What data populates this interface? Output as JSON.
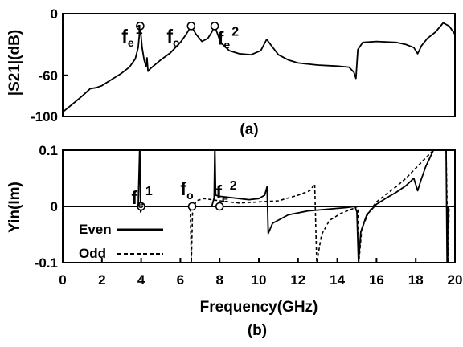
{
  "chart_data": [
    {
      "type": "line",
      "caption": "(a)",
      "ylabel": "|S21|(dB)",
      "xlabel": "",
      "xlim": [
        0,
        20
      ],
      "ylim": [
        -100,
        0
      ],
      "yticks": [
        "0",
        "-60",
        "-100"
      ],
      "ytick_values": [
        0,
        -60,
        -100
      ],
      "grid": false,
      "series": [
        {
          "values": [
            {
              "x": 0.05,
              "y": -95
            },
            {
              "x": 0.5,
              "y": -88
            },
            {
              "x": 1.0,
              "y": -80
            },
            {
              "x": 1.4,
              "y": -73
            },
            {
              "x": 1.7,
              "y": -72
            },
            {
              "x": 2.0,
              "y": -70
            },
            {
              "x": 2.5,
              "y": -64
            },
            {
              "x": 3.0,
              "y": -58
            },
            {
              "x": 3.4,
              "y": -52
            },
            {
              "x": 3.7,
              "y": -44
            },
            {
              "x": 3.85,
              "y": -33
            },
            {
              "x": 3.95,
              "y": -12
            },
            {
              "x": 4.05,
              "y": -33
            },
            {
              "x": 4.15,
              "y": -45
            },
            {
              "x": 4.25,
              "y": -51
            },
            {
              "x": 4.3,
              "y": -43
            },
            {
              "x": 4.35,
              "y": -56
            },
            {
              "x": 4.5,
              "y": -53
            },
            {
              "x": 5.0,
              "y": -45
            },
            {
              "x": 5.5,
              "y": -38
            },
            {
              "x": 6.0,
              "y": -28
            },
            {
              "x": 6.3,
              "y": -20
            },
            {
              "x": 6.55,
              "y": -12
            },
            {
              "x": 6.8,
              "y": -20
            },
            {
              "x": 7.1,
              "y": -27
            },
            {
              "x": 7.4,
              "y": -24
            },
            {
              "x": 7.6,
              "y": -18
            },
            {
              "x": 7.75,
              "y": -12
            },
            {
              "x": 7.9,
              "y": -20
            },
            {
              "x": 8.05,
              "y": -28
            },
            {
              "x": 8.5,
              "y": -36
            },
            {
              "x": 9.0,
              "y": -39
            },
            {
              "x": 9.6,
              "y": -40
            },
            {
              "x": 10.1,
              "y": -36
            },
            {
              "x": 10.4,
              "y": -25
            },
            {
              "x": 10.6,
              "y": -30
            },
            {
              "x": 11.0,
              "y": -40
            },
            {
              "x": 11.5,
              "y": -45
            },
            {
              "x": 12.0,
              "y": -48
            },
            {
              "x": 13.0,
              "y": -50
            },
            {
              "x": 14.0,
              "y": -51
            },
            {
              "x": 14.6,
              "y": -52
            },
            {
              "x": 14.85,
              "y": -57
            },
            {
              "x": 14.95,
              "y": -63
            },
            {
              "x": 15.05,
              "y": -35
            },
            {
              "x": 15.3,
              "y": -28
            },
            {
              "x": 16.0,
              "y": -27
            },
            {
              "x": 17.0,
              "y": -28
            },
            {
              "x": 17.5,
              "y": -30
            },
            {
              "x": 17.9,
              "y": -33
            },
            {
              "x": 18.1,
              "y": -39
            },
            {
              "x": 18.3,
              "y": -31
            },
            {
              "x": 18.6,
              "y": -24
            },
            {
              "x": 19.0,
              "y": -18
            },
            {
              "x": 19.4,
              "y": -9
            },
            {
              "x": 19.7,
              "y": -12
            },
            {
              "x": 20.0,
              "y": -20
            }
          ]
        }
      ],
      "markers": [
        {
          "x": 3.95,
          "y": -12
        },
        {
          "x": 6.55,
          "y": -12
        },
        {
          "x": 7.75,
          "y": -12
        }
      ],
      "annotations": [
        {
          "main": "f",
          "sub": "e",
          "sup": "1",
          "x": 3.0,
          "y": -28
        },
        {
          "main": "f",
          "sub": "o",
          "sup": "",
          "x": 5.3,
          "y": -28
        },
        {
          "main": "f",
          "sub": "e",
          "sup": "2",
          "x": 7.9,
          "y": -30
        }
      ]
    },
    {
      "type": "line",
      "caption": "(b)",
      "ylabel": "Yin(Im)",
      "xlabel": "Frequency(GHz)",
      "xlim": [
        0,
        20
      ],
      "ylim": [
        -0.1,
        0.1
      ],
      "xticks": [
        "0",
        "2",
        "4",
        "6",
        "8",
        "10",
        "12",
        "14",
        "16",
        "18",
        "20"
      ],
      "xtick_values": [
        0,
        2,
        4,
        6,
        8,
        10,
        12,
        14,
        16,
        18,
        20
      ],
      "yticks": [
        "0.1",
        "0",
        "-0.1"
      ],
      "ytick_values": [
        0.1,
        0,
        -0.1
      ],
      "grid": false,
      "legend": {
        "position": "bottom-left",
        "entries": [
          {
            "label": "Even",
            "style": "solid"
          },
          {
            "label": "Odd",
            "style": "dashed"
          }
        ]
      },
      "series": [
        {
          "name": "Even",
          "style": "solid",
          "values": [
            {
              "x": 0,
              "y": 0.0
            },
            {
              "x": 3.7,
              "y": 0.0
            },
            {
              "x": 3.85,
              "y": 0.0
            },
            {
              "x": 3.93,
              "y": 0.11
            },
            {
              "x": 3.97,
              "y": -0.01
            },
            {
              "x": 4.1,
              "y": 0.0
            },
            {
              "x": 7.6,
              "y": 0.0
            },
            {
              "x": 7.72,
              "y": 0.015
            },
            {
              "x": 7.76,
              "y": 0.11
            },
            {
              "x": 7.8,
              "y": 0.02
            },
            {
              "x": 8.0,
              "y": 0.018
            },
            {
              "x": 9.0,
              "y": 0.014
            },
            {
              "x": 9.5,
              "y": 0.012
            },
            {
              "x": 10.0,
              "y": 0.014
            },
            {
              "x": 10.3,
              "y": 0.02
            },
            {
              "x": 10.42,
              "y": 0.035
            },
            {
              "x": 10.48,
              "y": -0.048
            },
            {
              "x": 10.7,
              "y": -0.03
            },
            {
              "x": 11.5,
              "y": -0.015
            },
            {
              "x": 12.5,
              "y": -0.008
            },
            {
              "x": 13.5,
              "y": -0.005
            },
            {
              "x": 14.5,
              "y": -0.002
            },
            {
              "x": 14.9,
              "y": 0.0
            },
            {
              "x": 15.0,
              "y": -0.01
            },
            {
              "x": 15.08,
              "y": -0.1
            },
            {
              "x": 15.2,
              "y": -0.045
            },
            {
              "x": 15.5,
              "y": -0.015
            },
            {
              "x": 16.0,
              "y": 0.004
            },
            {
              "x": 16.5,
              "y": 0.015
            },
            {
              "x": 17.0,
              "y": 0.025
            },
            {
              "x": 17.5,
              "y": 0.037
            },
            {
              "x": 17.9,
              "y": 0.05
            },
            {
              "x": 18.1,
              "y": 0.028
            },
            {
              "x": 18.25,
              "y": 0.045
            },
            {
              "x": 18.5,
              "y": 0.07
            },
            {
              "x": 18.9,
              "y": 0.1
            },
            {
              "x": 19.4,
              "y": 0.1
            },
            {
              "x": 19.55,
              "y": 0.1
            },
            {
              "x": 19.6,
              "y": -0.1
            },
            {
              "x": 19.65,
              "y": 0.0
            },
            {
              "x": 20.0,
              "y": 0.0
            }
          ]
        },
        {
          "name": "Odd",
          "style": "dashed",
          "values": [
            {
              "x": 0,
              "y": 0.0
            },
            {
              "x": 6.3,
              "y": 0.0
            },
            {
              "x": 6.5,
              "y": 0.0
            },
            {
              "x": 6.56,
              "y": -0.1
            },
            {
              "x": 6.62,
              "y": -0.012
            },
            {
              "x": 6.8,
              "y": 0.01
            },
            {
              "x": 7.2,
              "y": 0.014
            },
            {
              "x": 8.0,
              "y": 0.01
            },
            {
              "x": 9.0,
              "y": 0.006
            },
            {
              "x": 10.0,
              "y": 0.008
            },
            {
              "x": 11.0,
              "y": 0.01
            },
            {
              "x": 12.0,
              "y": 0.02
            },
            {
              "x": 12.6,
              "y": 0.028
            },
            {
              "x": 12.85,
              "y": 0.04
            },
            {
              "x": 12.95,
              "y": -0.1
            },
            {
              "x": 13.2,
              "y": -0.05
            },
            {
              "x": 13.6,
              "y": -0.025
            },
            {
              "x": 14.2,
              "y": -0.012
            },
            {
              "x": 14.8,
              "y": -0.004
            },
            {
              "x": 15.05,
              "y": 0.0
            },
            {
              "x": 15.1,
              "y": -0.1
            },
            {
              "x": 15.25,
              "y": -0.04
            },
            {
              "x": 15.6,
              "y": -0.01
            },
            {
              "x": 16.0,
              "y": 0.008
            },
            {
              "x": 16.5,
              "y": 0.022
            },
            {
              "x": 17.0,
              "y": 0.035
            },
            {
              "x": 17.5,
              "y": 0.05
            },
            {
              "x": 18.0,
              "y": 0.068
            },
            {
              "x": 18.5,
              "y": 0.086
            },
            {
              "x": 18.9,
              "y": 0.1
            },
            {
              "x": 19.55,
              "y": 0.1
            },
            {
              "x": 19.65,
              "y": -0.1
            },
            {
              "x": 19.7,
              "y": 0.0
            },
            {
              "x": 20.0,
              "y": 0.0
            }
          ]
        }
      ],
      "markers": [
        {
          "x": 4.0,
          "y": 0
        },
        {
          "x": 6.6,
          "y": 0
        },
        {
          "x": 8.0,
          "y": 0
        }
      ],
      "annotations": [
        {
          "main": "f",
          "sub": "e",
          "sup": "1",
          "x": 3.5,
          "y": 0.004
        },
        {
          "main": "f",
          "sub": "o",
          "sup": "",
          "x": 6.0,
          "y": 0.02
        },
        {
          "main": "f",
          "sub": "e",
          "sup": "2",
          "x": 7.8,
          "y": 0.014
        }
      ]
    }
  ]
}
